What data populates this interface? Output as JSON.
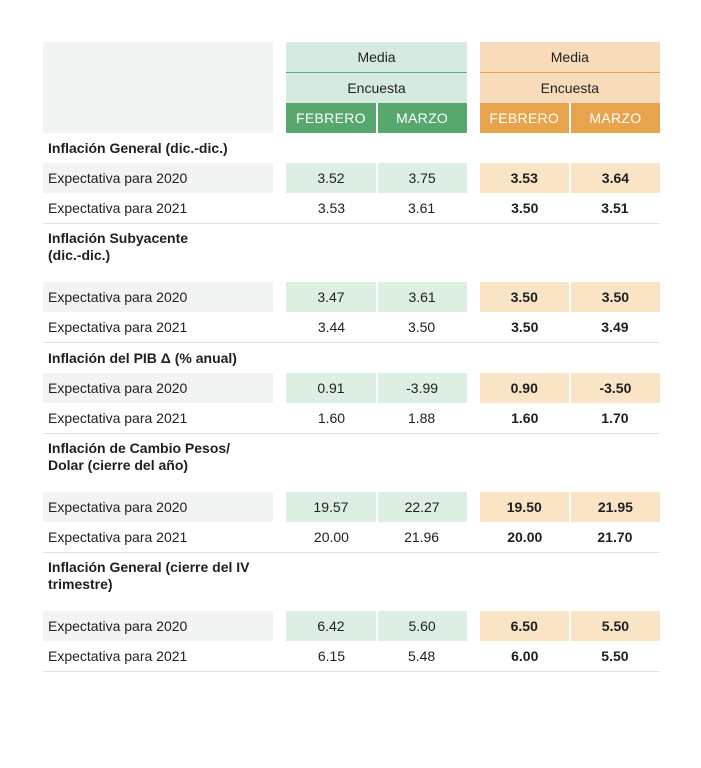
{
  "header": {
    "group_left": {
      "title": "Media",
      "subtitle": "Encuesta"
    },
    "group_right": {
      "title": "Media",
      "subtitle": "Encuesta"
    },
    "months": [
      "FEBRERO",
      "MARZO"
    ]
  },
  "colors": {
    "green": "#56a86e",
    "green_light": "#d6ebdf",
    "orange": "#e8a44c",
    "orange_light": "#f8dcb9"
  },
  "sections": [
    {
      "title": "Inflación General (dic.-dic.)",
      "rows": [
        {
          "label": "Expectativa para 2020",
          "g_feb": "3.52",
          "g_mar": "3.75",
          "o_feb": "3.53",
          "o_mar": "3.64"
        },
        {
          "label": "Expectativa para 2021",
          "g_feb": "3.53",
          "g_mar": "3.61",
          "o_feb": "3.50",
          "o_mar": "3.51"
        }
      ]
    },
    {
      "title": "Inflación Subyacente (dic.-dic.)",
      "rows": [
        {
          "label": "Expectativa para 2020",
          "g_feb": "3.47",
          "g_mar": "3.61",
          "o_feb": "3.50",
          "o_mar": "3.50"
        },
        {
          "label": "Expectativa para 2021",
          "g_feb": "3.44",
          "g_mar": "3.50",
          "o_feb": "3.50",
          "o_mar": "3.49"
        }
      ]
    },
    {
      "title": "Inflación del PIB Δ (% anual)",
      "rows": [
        {
          "label": "Expectativa para 2020",
          "g_feb": "0.91",
          "g_mar": "-3.99",
          "o_feb": "0.90",
          "o_mar": "-3.50"
        },
        {
          "label": "Expectativa para 2021",
          "g_feb": "1.60",
          "g_mar": "1.88",
          "o_feb": "1.60",
          "o_mar": "1.70"
        }
      ]
    },
    {
      "title": "Inflación de Cambio Pesos/ Dolar (cierre del año)",
      "rows": [
        {
          "label": "Expectativa para 2020",
          "g_feb": "19.57",
          "g_mar": "22.27",
          "o_feb": "19.50",
          "o_mar": "21.95"
        },
        {
          "label": "Expectativa para 2021",
          "g_feb": "20.00",
          "g_mar": "21.96",
          "o_feb": "20.00",
          "o_mar": "21.70"
        }
      ]
    },
    {
      "title": "Inflación General (cierre del IV trimestre)",
      "rows": [
        {
          "label": "Expectativa para 2020",
          "g_feb": "6.42",
          "g_mar": "5.60",
          "o_feb": "6.50",
          "o_mar": "5.50"
        },
        {
          "label": "Expectativa para 2021",
          "g_feb": "6.15",
          "g_mar": "5.48",
          "o_feb": "6.00",
          "o_mar": "5.50"
        }
      ]
    }
  ]
}
